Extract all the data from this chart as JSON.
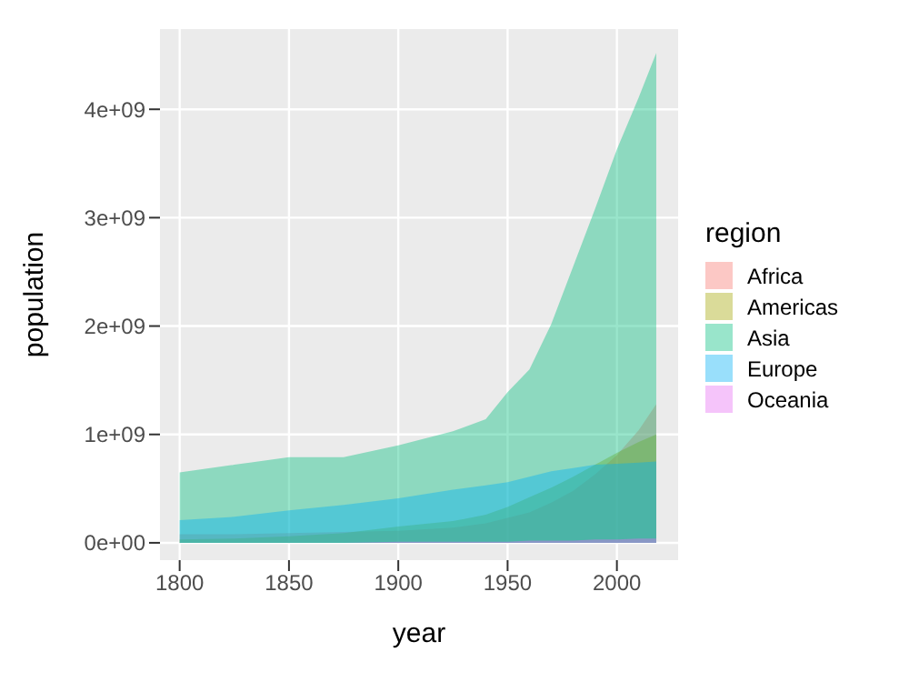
{
  "chart_data": {
    "type": "area",
    "xlabel": "year",
    "ylabel": "population",
    "legend_title": "region",
    "legend": "right",
    "grid": true,
    "x": [
      1800,
      1825,
      1850,
      1875,
      1900,
      1925,
      1940,
      1950,
      1960,
      1970,
      1980,
      1990,
      2000,
      2010,
      2018
    ],
    "xlim": [
      1791,
      2028
    ],
    "xticks": [
      1800,
      1850,
      1900,
      1950,
      2000
    ],
    "ylim": [
      -160000000,
      4740000000
    ],
    "yticks": [
      {
        "value": 0,
        "label": "0e+00"
      },
      {
        "value": 1000000000,
        "label": "1e+09"
      },
      {
        "value": 2000000000,
        "label": "2e+09"
      },
      {
        "value": 3000000000,
        "label": "3e+09"
      },
      {
        "value": 4000000000,
        "label": "4e+09"
      }
    ],
    "series": [
      {
        "name": "Africa",
        "color": "#F8766D",
        "values": [
          80000000,
          80000000,
          90000000,
          100000000,
          110000000,
          140000000,
          180000000,
          230000000,
          280000000,
          370000000,
          480000000,
          630000000,
          810000000,
          1040000000,
          1280000000
        ]
      },
      {
        "name": "Americas",
        "color": "#A3A500",
        "values": [
          30000000,
          40000000,
          60000000,
          90000000,
          150000000,
          200000000,
          260000000,
          330000000,
          420000000,
          510000000,
          610000000,
          720000000,
          830000000,
          930000000,
          1000000000
        ]
      },
      {
        "name": "Asia",
        "color": "#00BF7D",
        "values": [
          650000000,
          720000000,
          790000000,
          790000000,
          900000000,
          1030000000,
          1140000000,
          1390000000,
          1600000000,
          2020000000,
          2550000000,
          3080000000,
          3630000000,
          4110000000,
          4520000000
        ]
      },
      {
        "name": "Europe",
        "color": "#00B0F6",
        "values": [
          210000000,
          240000000,
          300000000,
          350000000,
          410000000,
          490000000,
          530000000,
          560000000,
          610000000,
          660000000,
          690000000,
          720000000,
          730000000,
          740000000,
          750000000
        ]
      },
      {
        "name": "Oceania",
        "color": "#E76BF3",
        "values": [
          0,
          0,
          0,
          0,
          10000000,
          10000000,
          10000000,
          10000000,
          20000000,
          20000000,
          20000000,
          30000000,
          30000000,
          40000000,
          40000000
        ]
      }
    ]
  }
}
